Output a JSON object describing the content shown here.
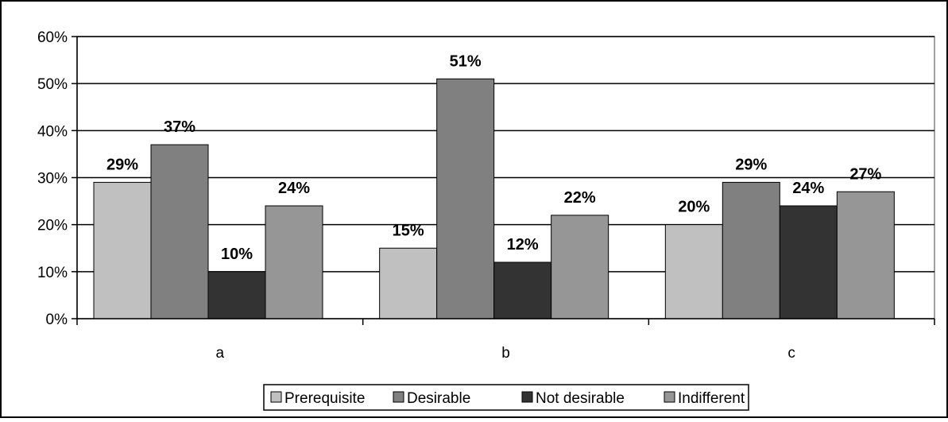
{
  "chart_data": {
    "type": "bar",
    "categories": [
      "a",
      "b",
      "c"
    ],
    "series": [
      {
        "name": "Prerequisite",
        "values": [
          29,
          15,
          20
        ],
        "labels": [
          "29%",
          "15%",
          "20%"
        ],
        "color": "#c0c0c0"
      },
      {
        "name": "Desirable",
        "values": [
          37,
          51,
          29
        ],
        "labels": [
          "37%",
          "51%",
          "29%"
        ],
        "color": "#808080"
      },
      {
        "name": "Not desirable",
        "values": [
          10,
          12,
          24
        ],
        "labels": [
          "10%",
          "12%",
          "24%"
        ],
        "color": "#333333"
      },
      {
        "name": "Indifferent",
        "values": [
          24,
          22,
          27
        ],
        "labels": [
          "24%",
          "22%",
          "27%"
        ],
        "color": "#969696"
      }
    ],
    "ylim": [
      0,
      60
    ],
    "yticks": [
      0,
      10,
      20,
      30,
      40,
      50,
      60
    ],
    "ytick_labels": [
      "0%",
      "10%",
      "20%",
      "30%",
      "40%",
      "50%",
      "60%"
    ],
    "grid": true,
    "legend_position": "bottom",
    "title": "",
    "xlabel": "",
    "ylabel": ""
  }
}
